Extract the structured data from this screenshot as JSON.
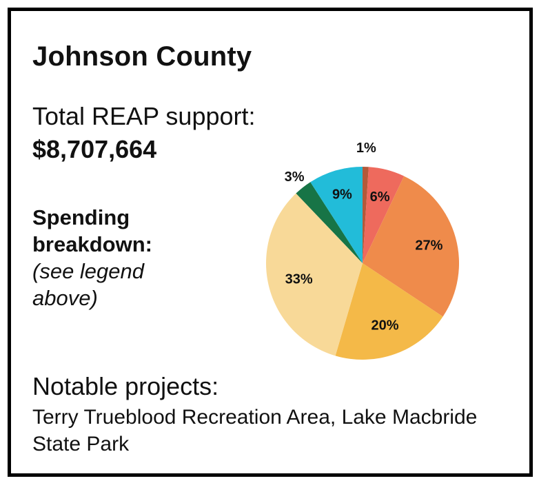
{
  "title": "Johnson County",
  "total": {
    "label": "Total REAP support:",
    "value": "$8,707,664"
  },
  "breakdown": {
    "heading_line1": "Spending",
    "heading_line2": "breakdown:",
    "note_line1": "(see legend",
    "note_line2": "above)"
  },
  "notable": {
    "label": "Notable projects:",
    "text": "Terry Trueblood Recreation Area, Lake Macbride State Park"
  },
  "chart_data": {
    "type": "pie",
    "values": [
      1,
      6,
      27,
      20,
      33,
      3,
      9
    ],
    "labels": [
      "1%",
      "6%",
      "27%",
      "20%",
      "33%",
      "3%",
      "9%"
    ],
    "colors": [
      "#b4593a",
      "#ee6a5d",
      "#ef8b4b",
      "#f4b948",
      "#f8d998",
      "#177446",
      "#22bcd9"
    ],
    "start_angle_deg": 0,
    "direction": "clockwise"
  }
}
